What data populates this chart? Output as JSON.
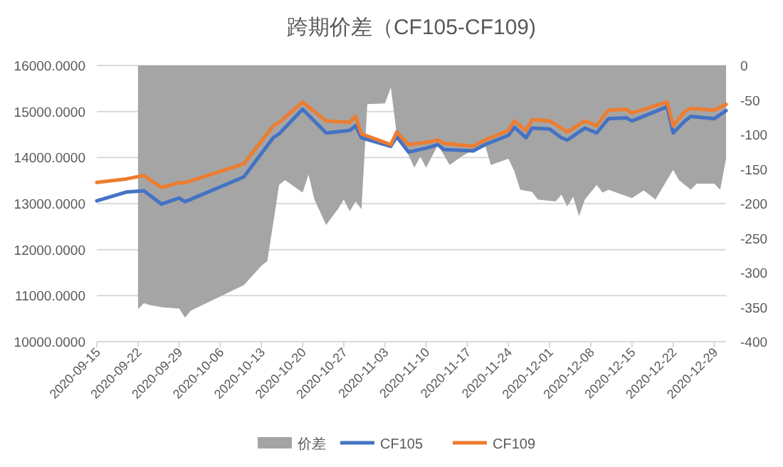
{
  "chart_data": {
    "type": "line",
    "title": "跨期价差（CF105-CF109)",
    "x": [
      "2020-09-15",
      "2020-09-20",
      "2020-09-23",
      "2020-09-26",
      "2020-09-29",
      "2020-09-30",
      "2020-10-10",
      "2020-10-15",
      "2020-10-16",
      "2020-10-20",
      "2020-10-24",
      "2020-10-28",
      "2020-10-29",
      "2020-10-30",
      "2020-11-04",
      "2020-11-05",
      "2020-11-07",
      "2020-11-10",
      "2020-11-12",
      "2020-11-13",
      "2020-11-18",
      "2020-11-20",
      "2020-11-24",
      "2020-11-25",
      "2020-11-27",
      "2020-11-28",
      "2020-12-01",
      "2020-12-03",
      "2020-12-04",
      "2020-12-07",
      "2020-12-09",
      "2020-12-11",
      "2020-12-14",
      "2020-12-15",
      "2020-12-21",
      "2020-12-22",
      "2020-12-24",
      "2020-12-25",
      "2020-12-29",
      "2020-12-31"
    ],
    "series": [
      {
        "name": "价差",
        "type": "area",
        "axis": "y2",
        "color": "#a5a5a5",
        "x": [
          "2020-09-22",
          "2020-09-23",
          "2020-09-24",
          "2020-09-26",
          "2020-09-29",
          "2020-09-30",
          "2020-10-01",
          "2020-10-10",
          "2020-10-13",
          "2020-10-14",
          "2020-10-15",
          "2020-10-16",
          "2020-10-17",
          "2020-10-20",
          "2020-10-21",
          "2020-10-22",
          "2020-10-24",
          "2020-10-26",
          "2020-10-27",
          "2020-10-28",
          "2020-10-29",
          "2020-10-30",
          "2020-10-31",
          "2020-11-03",
          "2020-11-04",
          "2020-11-05",
          "2020-11-07",
          "2020-11-08",
          "2020-11-09",
          "2020-11-10",
          "2020-11-12",
          "2020-11-14",
          "2020-11-16",
          "2020-11-18",
          "2020-11-20",
          "2020-11-21",
          "2020-11-24",
          "2020-11-25",
          "2020-11-26",
          "2020-11-28",
          "2020-11-29",
          "2020-12-02",
          "2020-12-03",
          "2020-12-04",
          "2020-12-05",
          "2020-12-06",
          "2020-12-07",
          "2020-12-09",
          "2020-12-10",
          "2020-12-11",
          "2020-12-15",
          "2020-12-17",
          "2020-12-19",
          "2020-12-22",
          "2020-12-23",
          "2020-12-25",
          "2020-12-26",
          "2020-12-29",
          "2020-12-30",
          "2020-12-31"
        ],
        "values": [
          -353,
          -344,
          -347,
          -350,
          -352,
          -365,
          -355,
          -318,
          -290,
          -283,
          -228,
          -173,
          -166,
          -184,
          -158,
          -194,
          -231,
          -208,
          -194,
          -211,
          -197,
          -208,
          -56,
          -55,
          -32,
          -100,
          -130,
          -148,
          -132,
          -148,
          -115,
          -144,
          -132,
          -122,
          -115,
          -144,
          -135,
          -153,
          -180,
          -183,
          -194,
          -197,
          -187,
          -204,
          -190,
          -218,
          -194,
          -173,
          -184,
          -180,
          -192,
          -181,
          -194,
          -151,
          -166,
          -180,
          -171,
          -171,
          -180,
          -135
        ]
      },
      {
        "name": "CF105",
        "color": "#4472c4",
        "values": [
          13060,
          13250,
          13280,
          12990,
          13120,
          13040,
          13580,
          14430,
          14515,
          15050,
          14535,
          14590,
          14690,
          14430,
          14245,
          14455,
          14120,
          14205,
          14280,
          14175,
          14145,
          14280,
          14485,
          14660,
          14430,
          14640,
          14620,
          14430,
          14380,
          14640,
          14535,
          14845,
          14865,
          14795,
          15105,
          14535,
          14795,
          14895,
          14845,
          15020
        ]
      },
      {
        "name": "CF109",
        "color": "#ed7d31",
        "values": [
          13460,
          13535,
          13610,
          13350,
          13455,
          13455,
          13865,
          14690,
          14765,
          15205,
          14795,
          14765,
          14895,
          14515,
          14280,
          14555,
          14280,
          14330,
          14380,
          14310,
          14245,
          14380,
          14590,
          14795,
          14590,
          14825,
          14795,
          14640,
          14555,
          14795,
          14690,
          15030,
          15050,
          14970,
          15205,
          14690,
          15000,
          15070,
          15030,
          15155
        ]
      }
    ],
    "xlim": [
      "2020-09-15",
      "2020-12-31"
    ],
    "xticks": [
      "2020-09-15",
      "2020-09-22",
      "2020-09-29",
      "2020-10-06",
      "2020-10-13",
      "2020-10-20",
      "2020-10-27",
      "2020-11-03",
      "2020-11-10",
      "2020-11-17",
      "2020-11-24",
      "2020-12-01",
      "2020-12-08",
      "2020-12-15",
      "2020-12-22",
      "2020-12-29"
    ],
    "ylim": [
      10000,
      16000
    ],
    "yticks": [
      {
        "value": 10000,
        "label": "10000.0000"
      },
      {
        "value": 11000,
        "label": "11000.0000"
      },
      {
        "value": 12000,
        "label": "12000.0000"
      },
      {
        "value": 13000,
        "label": "13000.0000"
      },
      {
        "value": 14000,
        "label": "14000.0000"
      },
      {
        "value": 15000,
        "label": "15000.0000"
      },
      {
        "value": 16000,
        "label": "16000.0000"
      }
    ],
    "y2lim": [
      -400,
      0
    ],
    "y2ticks": [
      0,
      -50,
      -100,
      -150,
      -200,
      -250,
      -300,
      -350,
      -400
    ],
    "grid": "y",
    "legend": "bottom",
    "marker": "none",
    "line_style": "solid"
  }
}
